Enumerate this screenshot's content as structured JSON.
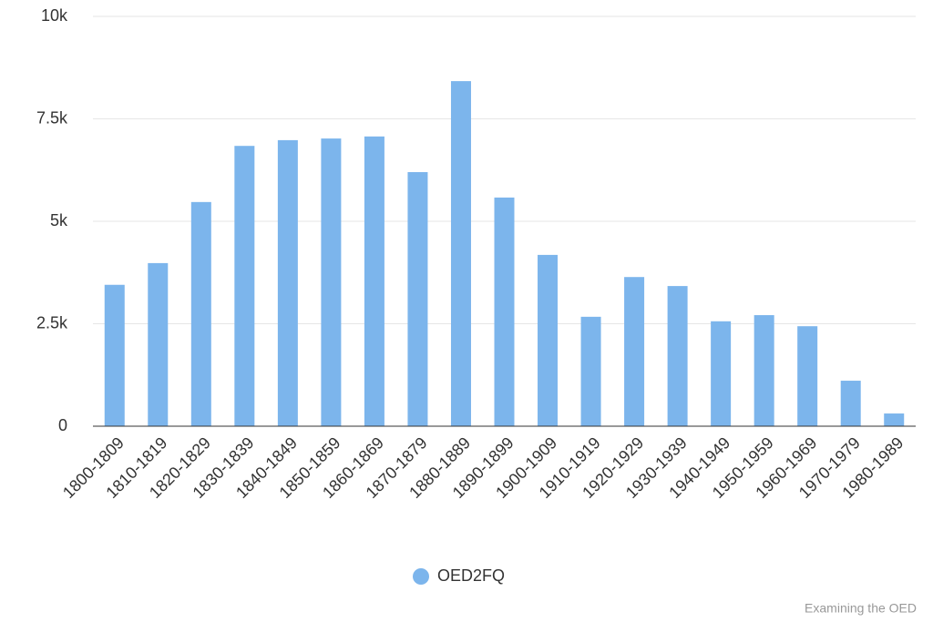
{
  "chart_data": {
    "type": "bar",
    "categories": [
      "1800-1809",
      "1810-1819",
      "1820-1829",
      "1830-1839",
      "1840-1849",
      "1850-1859",
      "1860-1869",
      "1870-1879",
      "1880-1889",
      "1890-1899",
      "1900-1909",
      "1910-1919",
      "1920-1929",
      "1930-1939",
      "1940-1949",
      "1950-1959",
      "1960-1969",
      "1970-1979",
      "1980-1989"
    ],
    "series": [
      {
        "name": "OED2FQ",
        "color": "#7cb5ec",
        "values": [
          3450,
          3980,
          5470,
          6840,
          6980,
          7020,
          7070,
          6200,
          8420,
          5580,
          4180,
          2670,
          3640,
          3420,
          2560,
          2710,
          2440,
          1110,
          310
        ]
      }
    ],
    "ylim": [
      0,
      10000
    ],
    "yticks": [
      0,
      {
        "value": 2500,
        "label": "2.5k"
      },
      {
        "value": 5000,
        "label": "5k"
      },
      {
        "value": 7500,
        "label": "7.5k"
      },
      {
        "value": 10000,
        "label": "10k"
      }
    ],
    "grid": true,
    "legend": "bottom",
    "credit": "Examining the OED"
  }
}
